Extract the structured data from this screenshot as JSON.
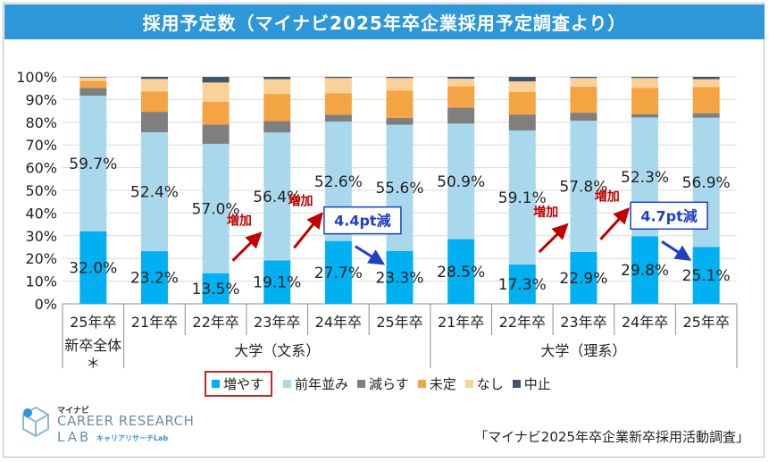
{
  "title": "採用予定数（マイナビ2025年卒企業採用予定調査より）",
  "chart_data": {
    "type": "bar",
    "stacked": true,
    "ylim": [
      0,
      100
    ],
    "y_ticks": [
      "0%",
      "10%",
      "20%",
      "30%",
      "40%",
      "50%",
      "60%",
      "70%",
      "80%",
      "90%",
      "100%"
    ],
    "categories": [
      "25年卒",
      "21年卒",
      "22年卒",
      "23年卒",
      "24年卒",
      "25年卒",
      "21年卒",
      "22年卒",
      "23年卒",
      "24年卒",
      "25年卒"
    ],
    "groups": [
      {
        "label": "新卒全体\n＊",
        "label_lines": [
          "新卒全体",
          "＊"
        ],
        "from": 0,
        "to": 0
      },
      {
        "label": "大学（文系）",
        "from": 1,
        "to": 5
      },
      {
        "label": "大学（理系）",
        "from": 6,
        "to": 10
      }
    ],
    "series": [
      {
        "name": "増やす",
        "color": "#00b0f0",
        "values": [
          32.0,
          23.2,
          13.5,
          19.1,
          27.7,
          23.3,
          28.5,
          17.3,
          22.9,
          29.8,
          25.1
        ]
      },
      {
        "name": "前年並み",
        "color": "#a9d8ec",
        "values": [
          59.7,
          52.4,
          57.0,
          56.4,
          52.6,
          55.6,
          50.9,
          59.1,
          57.8,
          52.3,
          56.9
        ]
      },
      {
        "name": "減らす",
        "color": "#7f7f7f",
        "values": [
          3.5,
          9.0,
          8.5,
          5.0,
          3.0,
          3.0,
          7.0,
          7.0,
          3.5,
          1.5,
          2.0
        ]
      },
      {
        "name": "未定",
        "color": "#f4a442",
        "values": [
          3.0,
          9.0,
          10.0,
          12.0,
          9.5,
          12.0,
          9.5,
          10.0,
          11.5,
          11.5,
          11.5
        ]
      },
      {
        "name": "なし",
        "color": "#fbd19a",
        "values": [
          1.5,
          5.5,
          8.5,
          6.5,
          6.7,
          5.6,
          3.3,
          4.6,
          3.8,
          4.4,
          3.5
        ]
      },
      {
        "name": "中止",
        "color": "#44546a",
        "values": [
          0.3,
          0.9,
          2.5,
          1.0,
          0.5,
          0.5,
          0.8,
          2.0,
          0.5,
          0.5,
          1.0
        ]
      }
    ],
    "labeled_series": [
      "増やす",
      "前年並み"
    ],
    "annotations": [
      {
        "type": "arrow",
        "text": "増加",
        "from": 2,
        "to": 3
      },
      {
        "type": "arrow",
        "text": "増加",
        "from": 3,
        "to": 4
      },
      {
        "type": "callout",
        "text": "4.4pt減",
        "from": 4,
        "to": 5
      },
      {
        "type": "arrow",
        "text": "増加",
        "from": 7,
        "to": 8
      },
      {
        "type": "arrow",
        "text": "増加",
        "from": 8,
        "to": 9
      },
      {
        "type": "callout",
        "text": "4.7pt減",
        "from": 9,
        "to": 10
      }
    ],
    "legend_highlight": "増やす"
  },
  "logo": {
    "top": "マイナビ",
    "main": "CAREER RESEARCH",
    "lab": "LAB",
    "kana": "キャリアリサーチLab"
  },
  "source": "「マイナビ2025年卒企業新卒採用活動調査」"
}
